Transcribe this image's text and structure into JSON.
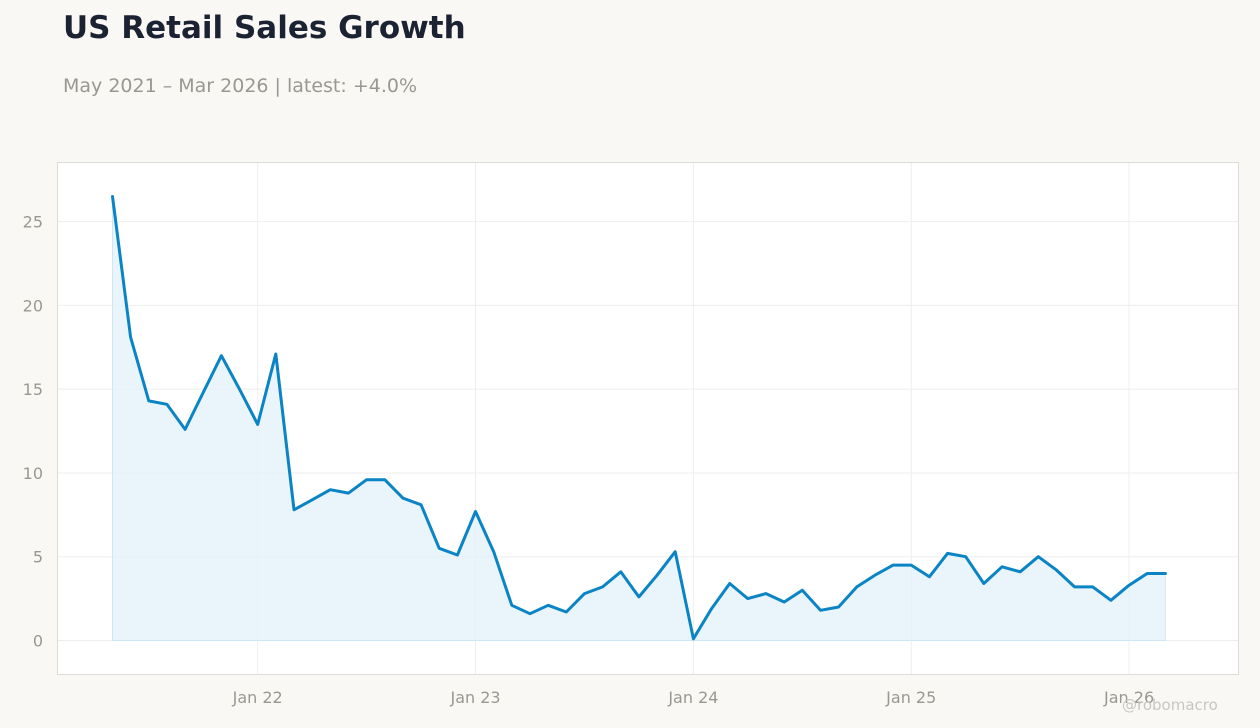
{
  "title": "US Retail Sales Growth",
  "subtitle": "May 2021 – Mar 2026 | latest: +4.0%",
  "credit": "@robomacro",
  "colors": {
    "line": "#0a84c4",
    "fill": "#e3f1fa",
    "grid": "#eeeeee",
    "tick": "#999890"
  },
  "chart_data": {
    "type": "area",
    "title": "US Retail Sales Growth",
    "xlabel": "",
    "ylabel": "",
    "x_ticks": [
      "Jan 22",
      "Jan 23",
      "Jan 24",
      "Jan 25",
      "Jan 26"
    ],
    "y_ticks": [
      0,
      5,
      10,
      15,
      20,
      25
    ],
    "ylim": [
      -2,
      28.5
    ],
    "xlim": [
      "2021-02",
      "2026-07"
    ],
    "grid": true,
    "legend": "none",
    "series": [
      {
        "x": [
          "2021-05",
          "2021-06",
          "2021-07",
          "2021-08",
          "2021-09",
          "2021-10",
          "2021-11",
          "2021-12",
          "2022-01",
          "2022-02",
          "2022-03",
          "2022-04",
          "2022-05",
          "2022-06",
          "2022-07",
          "2022-08",
          "2022-09",
          "2022-10",
          "2022-11",
          "2022-12",
          "2023-01",
          "2023-02",
          "2023-03",
          "2023-04",
          "2023-05",
          "2023-06",
          "2023-07",
          "2023-08",
          "2023-09",
          "2023-10",
          "2023-11",
          "2023-12",
          "2024-01",
          "2024-02",
          "2024-03",
          "2024-04",
          "2024-05",
          "2024-06",
          "2024-07",
          "2024-08",
          "2024-09",
          "2024-10",
          "2024-11",
          "2024-12",
          "2025-01",
          "2025-02",
          "2025-03",
          "2025-04",
          "2025-05",
          "2025-06",
          "2025-07",
          "2025-08",
          "2025-09",
          "2025-10",
          "2025-11",
          "2025-12",
          "2026-01",
          "2026-02",
          "2026-03"
        ],
        "y": [
          26.5,
          18.1,
          14.3,
          14.1,
          12.6,
          14.8,
          17.0,
          15.0,
          12.9,
          17.1,
          7.8,
          8.4,
          9.0,
          8.8,
          9.6,
          9.6,
          8.5,
          8.1,
          5.5,
          5.1,
          7.7,
          5.3,
          2.1,
          1.6,
          2.1,
          1.7,
          2.8,
          3.2,
          4.1,
          2.6,
          3.9,
          5.3,
          0.1,
          1.9,
          3.4,
          2.5,
          2.8,
          2.3,
          3.0,
          1.8,
          2.0,
          3.2,
          3.9,
          4.5,
          4.5,
          3.8,
          5.2,
          5.0,
          3.4,
          4.4,
          4.1,
          5.0,
          4.2,
          3.2,
          3.2,
          2.4,
          3.3,
          4.0,
          4.0
        ]
      }
    ]
  }
}
